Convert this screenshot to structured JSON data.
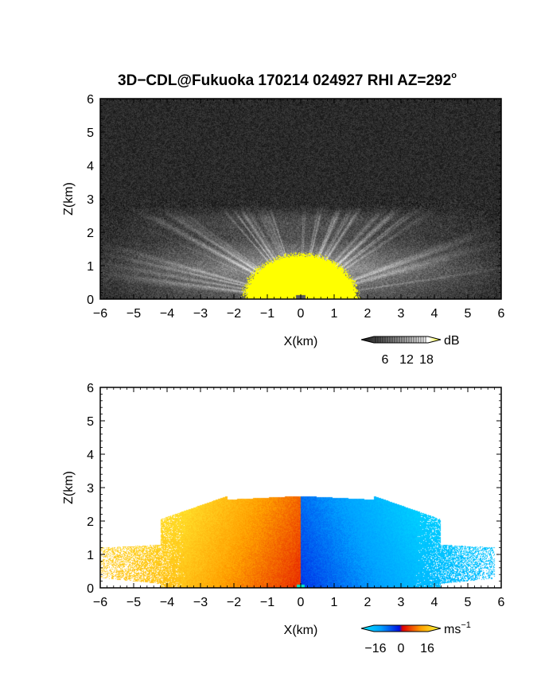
{
  "chart_data": [
    {
      "type": "heatmap",
      "panel": "reflectivity",
      "title": "3D−CDL@Fukuoka 170214 024927 RHI AZ=292°",
      "title_main": "3D−CDL@Fukuoka 170214 024927 RHI AZ=292",
      "title_sup": "o",
      "xlabel": "X(km)",
      "ylabel": "Z(km)",
      "xlim": [
        -6,
        6
      ],
      "ylim": [
        0,
        6
      ],
      "xticks": [
        "−6",
        "−5",
        "−4",
        "−3",
        "−2",
        "−1",
        "0",
        "1",
        "2",
        "3",
        "4",
        "5",
        "6"
      ],
      "yticks": [
        "0",
        "1",
        "2",
        "3",
        "4",
        "5",
        "6"
      ],
      "grid": false,
      "colorbar": {
        "unit": "dB",
        "ticks": [
          "6",
          "12",
          "18"
        ],
        "tick_values": [
          6,
          12,
          18
        ],
        "range": [
          0,
          21
        ],
        "colors": [
          "#101010",
          "#ffffff",
          "#ffff00"
        ],
        "placement": "bottom-right"
      },
      "features": {
        "noise_top_km": 3.0,
        "beam_fan_top_km": 2.8,
        "strong_echo_top_km": 1.35,
        "strong_echo_half_width_km": 1.7
      }
    },
    {
      "type": "heatmap",
      "panel": "doppler_velocity",
      "xlabel": "X(km)",
      "ylabel": "Z(km)",
      "xlim": [
        -6,
        6
      ],
      "ylim": [
        0,
        6
      ],
      "xticks": [
        "−6",
        "−5",
        "−4",
        "−3",
        "−2",
        "−1",
        "0",
        "1",
        "2",
        "3",
        "4",
        "5",
        "6"
      ],
      "yticks": [
        "0",
        "1",
        "2",
        "3",
        "4",
        "5",
        "6"
      ],
      "grid": false,
      "colorbar": {
        "unit": "ms",
        "unit_sup": "−1",
        "ticks": [
          "−16",
          "0",
          "16"
        ],
        "tick_values": [
          -16,
          0,
          16
        ],
        "range": [
          -24,
          24
        ],
        "colors": [
          "#00e8ff",
          "#00a0ff",
          "#0010e0",
          "#e00000",
          "#ffa000",
          "#ffff40"
        ],
        "placement": "bottom-right"
      },
      "features": {
        "echo_top_km": 2.75,
        "left_extent_km": -6.0,
        "right_extent_km": 5.8,
        "left_sign": "positive",
        "right_sign": "negative"
      }
    }
  ]
}
